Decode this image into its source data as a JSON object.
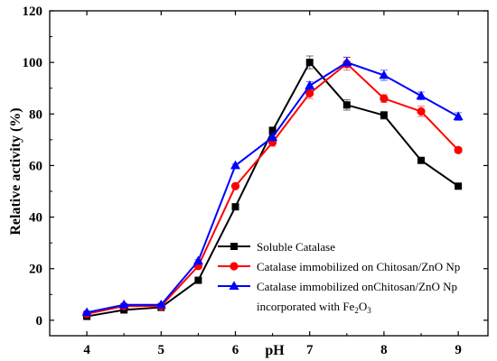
{
  "chart_data": {
    "type": "line",
    "xlabel": "pH",
    "ylabel": "Relative activity (%)",
    "xlim": [
      3.5,
      9.4
    ],
    "ylim": [
      -6,
      120
    ],
    "xticks": [
      4,
      5,
      6,
      7,
      8,
      9
    ],
    "yticks": [
      0,
      20,
      40,
      60,
      80,
      100,
      120
    ],
    "grid": false,
    "legend_position": "bottom-right",
    "x": [
      4,
      4.5,
      5,
      5.5,
      6,
      6.5,
      7,
      7.5,
      8,
      8.5,
      9
    ],
    "series": [
      {
        "name": "Soluble Catalase",
        "color": "#000000",
        "marker": "square",
        "values": [
          1.5,
          4,
          5,
          15.5,
          44,
          73.5,
          100,
          83.5,
          79.5,
          62,
          52
        ],
        "errors": [
          0.5,
          0.5,
          0.5,
          0.5,
          0.6,
          1.5,
          2.5,
          2,
          1.5,
          0.5,
          0.5
        ]
      },
      {
        "name": "Catalase immobilized on Chitosan/ZnO Np",
        "color": "#ff0000",
        "marker": "circle",
        "values": [
          2.5,
          5.5,
          5.5,
          21,
          52,
          69,
          88,
          99.5,
          86,
          81,
          66
        ],
        "errors": [
          0.5,
          0.5,
          0.5,
          0.5,
          0.6,
          1.5,
          2,
          2.5,
          1.5,
          2,
          1
        ]
      },
      {
        "name": "Catalase immobilized onChitosan/ZnO Np",
        "name_line2": "incorporated with ",
        "name_line2_chem": "Fe",
        "name_line2_sub1": "2",
        "name_line2_mid": "O",
        "name_line2_sub2": "3",
        "color": "#0000ff",
        "marker": "triangle",
        "values": [
          3,
          6,
          6,
          23,
          60,
          71,
          91,
          100,
          95,
          87,
          79
        ],
        "errors": [
          0.5,
          0.5,
          0.5,
          0.5,
          0.6,
          1.5,
          1.5,
          2,
          2,
          1.5,
          1.5
        ]
      }
    ]
  }
}
